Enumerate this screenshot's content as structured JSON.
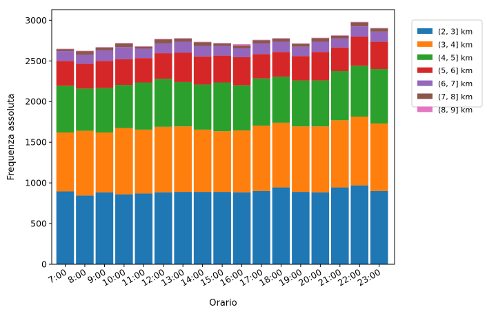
{
  "chart_data": {
    "type": "bar",
    "stacked": true,
    "xlabel": "Orario",
    "ylabel": "Frequenza assoluta",
    "ylim": [
      0,
      3130
    ],
    "yticks": [
      0,
      500,
      1000,
      1500,
      2000,
      2500,
      3000
    ],
    "categories": [
      "7:00",
      "8:00",
      "9:00",
      "10:00",
      "11:00",
      "12:00",
      "13:00",
      "14:00",
      "15:00",
      "16:00",
      "17:00",
      "18:00",
      "19:00",
      "20:00",
      "21:00",
      "22:00",
      "23:00"
    ],
    "legend_position": "outside-top-right",
    "grid": false,
    "series": [
      {
        "name": "(2, 3] km",
        "color": "#1f77b4",
        "values": [
          895,
          845,
          885,
          860,
          870,
          885,
          890,
          890,
          890,
          885,
          900,
          945,
          890,
          885,
          945,
          970,
          900
        ]
      },
      {
        "name": "(3, 4] km",
        "color": "#ff7f0e",
        "values": [
          725,
          795,
          735,
          815,
          785,
          805,
          805,
          765,
          745,
          760,
          805,
          795,
          805,
          810,
          825,
          845,
          830
        ]
      },
      {
        "name": "(4, 5] km",
        "color": "#2ca02c",
        "values": [
          575,
          520,
          545,
          530,
          580,
          590,
          545,
          555,
          600,
          555,
          580,
          565,
          565,
          565,
          605,
          625,
          670
        ]
      },
      {
        "name": "(5, 6] km",
        "color": "#d62728",
        "values": [
          305,
          305,
          335,
          315,
          300,
          315,
          360,
          345,
          330,
          345,
          300,
          305,
          300,
          350,
          290,
          360,
          335
        ]
      },
      {
        "name": "(6, 7] km",
        "color": "#9467bd",
        "values": [
          120,
          110,
          130,
          150,
          115,
          120,
          135,
          130,
          120,
          110,
          130,
          125,
          115,
          125,
          110,
          125,
          125
        ]
      },
      {
        "name": "(7, 8] km",
        "color": "#8c564b",
        "values": [
          25,
          45,
          35,
          45,
          25,
          50,
          40,
          45,
          30,
          35,
          40,
          40,
          35,
          45,
          35,
          50,
          40
        ]
      },
      {
        "name": "(8, 9] km",
        "color": "#e377c2",
        "values": [
          5,
          5,
          5,
          5,
          5,
          5,
          5,
          5,
          5,
          15,
          5,
          5,
          5,
          5,
          5,
          5,
          5
        ]
      }
    ]
  }
}
